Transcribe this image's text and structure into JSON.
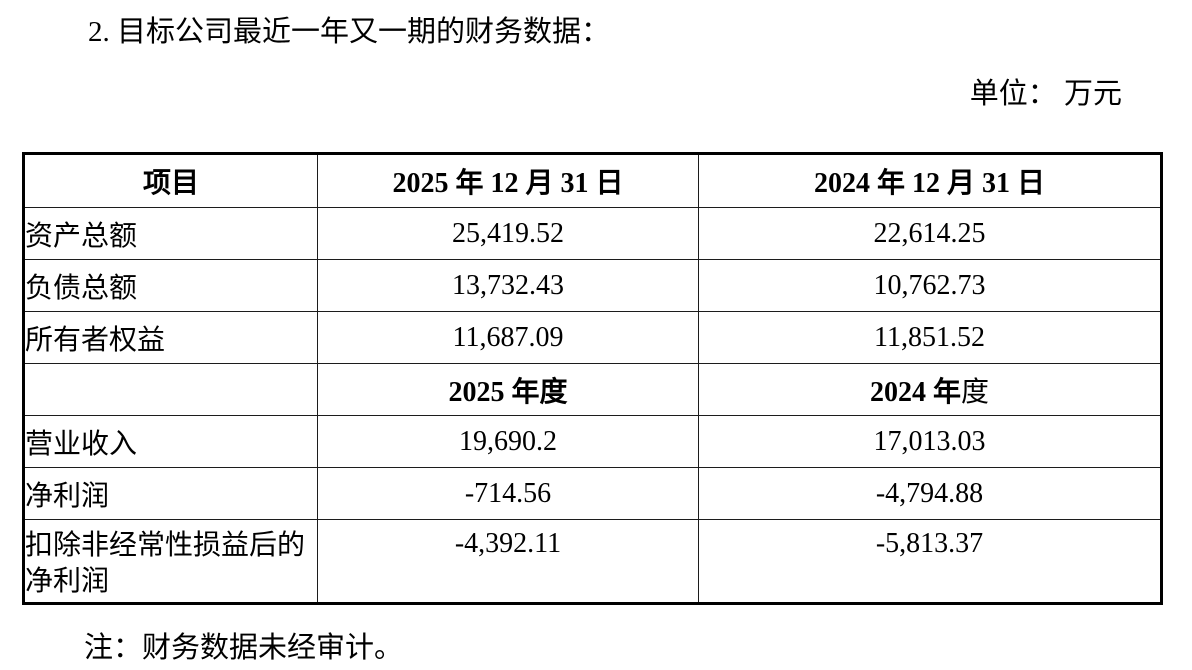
{
  "page": {
    "title": "2. 目标公司最近一年又一期的财务数据：",
    "unit_label": "单位： 万元",
    "note": "注：财务数据未经审计。"
  },
  "table": {
    "columns": {
      "item": "项目",
      "date_2025": "2025 年 12 月 31 日",
      "date_2024": "2024 年 12 月 31 日"
    },
    "period_header": {
      "y2025": "2025 年度",
      "y2024_bold": "2024 年",
      "y2024_rest": "度"
    },
    "rows_balance": [
      {
        "label": "资产总额",
        "v2025": "25,419.52",
        "v2024": "22,614.25"
      },
      {
        "label": "负债总额",
        "v2025": "13,732.43",
        "v2024": "10,762.73"
      },
      {
        "label": "所有者权益",
        "v2025": "11,687.09",
        "v2024": "11,851.52"
      }
    ],
    "rows_income": [
      {
        "label": "营业收入",
        "v2025": "19,690.2",
        "v2024": "17,013.03"
      },
      {
        "label": "净利润",
        "v2025": "-714.56",
        "v2024": "-4,794.88"
      },
      {
        "label": "扣除非经常性损益后的净利润",
        "v2025": "-4,392.11",
        "v2024": "-5,813.37"
      }
    ]
  }
}
